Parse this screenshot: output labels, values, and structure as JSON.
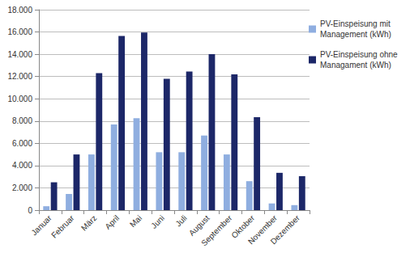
{
  "chart_data": {
    "type": "bar",
    "categories": [
      "Januar",
      "Februar",
      "März",
      "April",
      "Mai",
      "Juni",
      "Juli",
      "August",
      "September",
      "Oktober",
      "November",
      "Dezember"
    ],
    "series": [
      {
        "name": "PV-Einspeisung mit Management (kWh)",
        "color": "#8faee0",
        "values": [
          350,
          1450,
          5000,
          7700,
          8250,
          5200,
          5200,
          6700,
          5000,
          2600,
          600,
          450
        ]
      },
      {
        "name": "PV-Einspeisung ohne Managament (kWh)",
        "color": "#1c2768",
        "values": [
          2500,
          5000,
          12300,
          15650,
          15950,
          11800,
          12450,
          14000,
          12200,
          8350,
          3350,
          3050
        ]
      }
    ],
    "ylim": [
      0,
      18000
    ],
    "yticks": [
      0,
      {
        "value": 2000,
        "label": "2.000"
      },
      {
        "value": 4000,
        "label": "4.000"
      },
      {
        "value": 6000,
        "label": "6.000"
      },
      {
        "value": 8000,
        "label": "8.000"
      },
      {
        "value": 10000,
        "label": "10.000"
      },
      {
        "value": 12000,
        "label": "12.000"
      },
      {
        "value": 14000,
        "label": "14.000"
      },
      {
        "value": 16000,
        "label": "16.000"
      },
      {
        "value": 18000,
        "label": "18.000"
      }
    ],
    "grid": true,
    "legend": "right"
  }
}
